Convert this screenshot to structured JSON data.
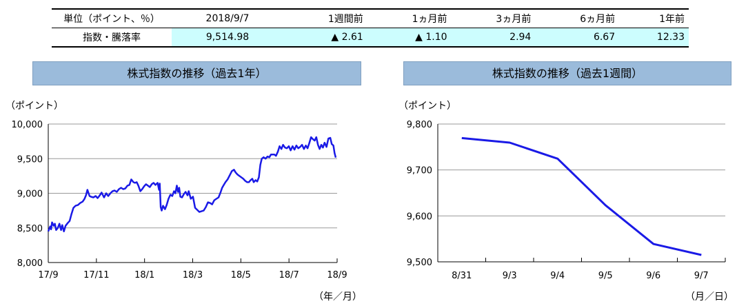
{
  "summary_table": {
    "header": [
      "単位（ポイント、％）",
      "2018/9/7",
      "1週間前",
      "1ヵ月前",
      "3ヵ月前",
      "6ヵ月前",
      "1年前"
    ],
    "row": [
      "指数・騰落率",
      "9,514.98",
      "▲ 2.61",
      "▲ 1.10",
      "2.94",
      "6.67",
      "12.33"
    ]
  },
  "colors": {
    "line": "#1a1ae6",
    "banner": "#9bbbdb",
    "table_highlight": "#ccfdfe"
  },
  "chart_data": [
    {
      "type": "line",
      "title": "株式指数の推移（過去1年）",
      "ylabel": "（ポイント）",
      "xlabel": "（年／月）",
      "ylim": [
        8000,
        10000
      ],
      "yticks": [
        "10,000",
        "9,500",
        "9,000",
        "8,500",
        "8,000"
      ],
      "ytick_values": [
        10000,
        9500,
        9000,
        8500,
        8000
      ],
      "xticks": [
        "17/9",
        "17/11",
        "18/1",
        "18/3",
        "18/5",
        "18/7",
        "18/9"
      ],
      "grid": true,
      "series": [
        {
          "values": [
            [
              "17/9",
              8450
            ],
            [
              "17/9",
              8520
            ],
            [
              "17/9",
              8580
            ],
            [
              "17/9",
              8530
            ],
            [
              "17/9",
              8470
            ],
            [
              "17/9",
              8560
            ],
            [
              "17/9",
              8520
            ],
            [
              "17/11",
              9020
            ],
            [
              "17/11",
              8980
            ],
            [
              "17/11",
              8950
            ],
            [
              "17/11",
              8970
            ],
            [
              "17/11",
              9000
            ],
            [
              "17/11",
              9050
            ],
            [
              "18/1",
              9150
            ],
            [
              "18/1",
              9090
            ],
            [
              "18/1",
              9100
            ],
            [
              "18/1",
              9160
            ],
            [
              "18/1",
              9050
            ],
            [
              "18/1",
              9120
            ],
            [
              "18/3",
              8850
            ],
            [
              "18/3",
              8950
            ],
            [
              "18/3",
              9000
            ],
            [
              "18/3",
              8800
            ],
            [
              "18/3",
              8720
            ],
            [
              "18/5",
              9300
            ],
            [
              "18/5",
              9250
            ],
            [
              "18/5",
              9200
            ],
            [
              "18/5",
              9150
            ],
            [
              "18/5",
              9160
            ],
            [
              "18/7",
              9580
            ],
            [
              "18/7",
              9620
            ],
            [
              "18/7",
              9650
            ],
            [
              "18/7",
              9680
            ],
            [
              "18/7",
              9640
            ],
            [
              "18/9",
              9515
            ]
          ],
          "points": [
            [
              0.0,
              8450
            ],
            [
              0.8,
              8520
            ],
            [
              1.2,
              8480
            ],
            [
              1.6,
              8580
            ],
            [
              2.3,
              8530
            ],
            [
              2.8,
              8560
            ],
            [
              3.3,
              8470
            ],
            [
              4.0,
              8500
            ],
            [
              4.7,
              8560
            ],
            [
              5.4,
              8470
            ],
            [
              5.9,
              8540
            ],
            [
              6.6,
              8450
            ],
            [
              7.3,
              8530
            ],
            [
              8.2,
              8570
            ],
            [
              9.0,
              8600
            ],
            [
              9.8,
              8700
            ],
            [
              10.6,
              8790
            ],
            [
              11.5,
              8820
            ],
            [
              12.5,
              8830
            ],
            [
              13.5,
              8860
            ],
            [
              14.5,
              8880
            ],
            [
              15.3,
              8920
            ],
            [
              15.9,
              8970
            ],
            [
              16.5,
              9050
            ],
            [
              17.4,
              8960
            ],
            [
              18.0,
              8950
            ],
            [
              19.0,
              8940
            ],
            [
              20.0,
              8960
            ],
            [
              20.8,
              8930
            ],
            [
              21.5,
              8960
            ],
            [
              22.5,
              9010
            ],
            [
              23.5,
              8940
            ],
            [
              24.4,
              9000
            ],
            [
              25.3,
              8960
            ],
            [
              26.2,
              9000
            ],
            [
              27.1,
              9030
            ],
            [
              28.0,
              9040
            ],
            [
              28.9,
              9020
            ],
            [
              29.8,
              9060
            ],
            [
              30.7,
              9080
            ],
            [
              31.6,
              9060
            ],
            [
              32.5,
              9070
            ],
            [
              33.4,
              9110
            ],
            [
              34.2,
              9120
            ],
            [
              35.0,
              9200
            ],
            [
              35.9,
              9160
            ],
            [
              36.6,
              9150
            ],
            [
              37.3,
              9160
            ],
            [
              38.0,
              9110
            ],
            [
              38.8,
              9030
            ],
            [
              39.6,
              9060
            ],
            [
              40.4,
              9100
            ],
            [
              41.2,
              9130
            ],
            [
              42.0,
              9110
            ],
            [
              42.8,
              9090
            ],
            [
              43.6,
              9130
            ],
            [
              44.4,
              9150
            ],
            [
              45.2,
              9120
            ],
            [
              46.1,
              9150
            ],
            [
              46.7,
              9050
            ],
            [
              47.0,
              9140
            ],
            [
              47.4,
              8800
            ],
            [
              47.8,
              8750
            ],
            [
              48.4,
              8820
            ],
            [
              49.2,
              8770
            ],
            [
              49.9,
              8830
            ],
            [
              50.7,
              8920
            ],
            [
              51.5,
              8980
            ],
            [
              52.3,
              8960
            ],
            [
              53.0,
              9030
            ],
            [
              53.6,
              9000
            ],
            [
              54.2,
              9110
            ],
            [
              54.7,
              9020
            ],
            [
              55.2,
              9080
            ],
            [
              55.7,
              8950
            ],
            [
              56.4,
              8940
            ],
            [
              57.2,
              8990
            ],
            [
              57.9,
              9020
            ],
            [
              58.7,
              8970
            ],
            [
              59.2,
              9030
            ],
            [
              60.1,
              8920
            ],
            [
              61.0,
              8950
            ],
            [
              61.9,
              8790
            ],
            [
              62.8,
              8760
            ],
            [
              63.7,
              8730
            ],
            [
              64.6,
              8740
            ],
            [
              65.5,
              8750
            ],
            [
              66.4,
              8800
            ],
            [
              67.3,
              8870
            ],
            [
              68.2,
              8860
            ],
            [
              69.1,
              8840
            ],
            [
              70.0,
              8900
            ],
            [
              70.9,
              8920
            ],
            [
              71.8,
              8940
            ],
            [
              72.6,
              9010
            ],
            [
              73.3,
              9080
            ],
            [
              74.0,
              9120
            ],
            [
              74.7,
              9160
            ],
            [
              75.6,
              9200
            ],
            [
              76.5,
              9260
            ],
            [
              77.4,
              9320
            ],
            [
              78.3,
              9340
            ],
            [
              79.0,
              9300
            ],
            [
              79.8,
              9270
            ],
            [
              80.6,
              9250
            ],
            [
              81.4,
              9230
            ],
            [
              82.2,
              9210
            ],
            [
              83.0,
              9180
            ],
            [
              83.8,
              9160
            ],
            [
              84.6,
              9160
            ],
            [
              85.3,
              9190
            ],
            [
              86.0,
              9210
            ],
            [
              86.6,
              9160
            ],
            [
              87.4,
              9190
            ],
            [
              88.1,
              9170
            ],
            [
              88.8,
              9230
            ],
            [
              89.4,
              9410
            ],
            [
              90.0,
              9500
            ],
            [
              90.8,
              9520
            ],
            [
              91.6,
              9500
            ],
            [
              92.4,
              9530
            ],
            [
              93.2,
              9520
            ],
            [
              93.9,
              9560
            ],
            [
              94.6,
              9560
            ],
            [
              95.3,
              9560
            ],
            [
              96.0,
              9540
            ],
            [
              96.8,
              9600
            ],
            [
              97.5,
              9680
            ],
            [
              98.3,
              9640
            ],
            [
              99.0,
              9700
            ],
            [
              99.8,
              9660
            ],
            [
              100.6,
              9650
            ],
            [
              101.4,
              9680
            ],
            [
              102.2,
              9620
            ],
            [
              103.0,
              9680
            ],
            [
              103.8,
              9630
            ],
            [
              104.6,
              9690
            ],
            [
              105.4,
              9650
            ],
            [
              106.2,
              9670
            ],
            [
              107.0,
              9700
            ],
            [
              107.8,
              9640
            ],
            [
              108.6,
              9690
            ],
            [
              109.3,
              9650
            ],
            [
              110.0,
              9720
            ],
            [
              110.8,
              9810
            ],
            [
              111.6,
              9780
            ],
            [
              112.3,
              9760
            ],
            [
              113.0,
              9810
            ],
            [
              113.7,
              9700
            ],
            [
              114.4,
              9640
            ],
            [
              115.1,
              9700
            ],
            [
              115.8,
              9660
            ],
            [
              116.5,
              9730
            ],
            [
              117.3,
              9670
            ],
            [
              118.1,
              9790
            ],
            [
              118.9,
              9800
            ],
            [
              119.5,
              9710
            ],
            [
              120.2,
              9690
            ],
            [
              120.7,
              9580
            ],
            [
              121.2,
              9515
            ]
          ]
        }
      ]
    },
    {
      "type": "line",
      "title": "株式指数の推移（過去1週間）",
      "ylabel": "（ポイント）",
      "xlabel": "（月／日）",
      "ylim": [
        9500,
        9800
      ],
      "yticks": [
        "9,800",
        "9,700",
        "9,600",
        "9,500"
      ],
      "ytick_values": [
        9800,
        9700,
        9600,
        9500
      ],
      "grid": true,
      "categories": [
        "8/31",
        "9/3",
        "9/4",
        "9/5",
        "9/6",
        "9/7"
      ],
      "series": [
        {
          "values": [
            9769.4,
            9759.5,
            9724.6,
            9623.1,
            9538.9,
            9515.0
          ]
        }
      ]
    }
  ]
}
